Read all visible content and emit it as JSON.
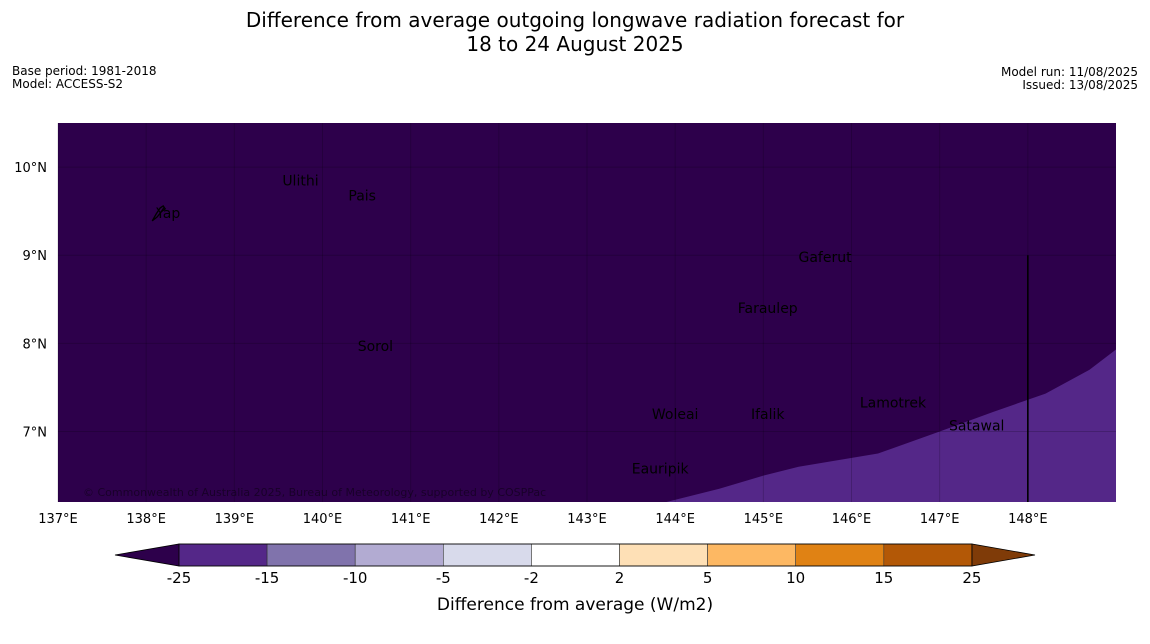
{
  "title": {
    "line1": "Difference from average outgoing longwave radiation forecast for",
    "line2": "18 to 24 August 2025"
  },
  "meta_left": {
    "base_period": "Base period: 1981-2018",
    "model": "Model: ACCESS-S2"
  },
  "meta_right": {
    "model_run": "Model run: 11/08/2025",
    "issued": "Issued: 13/08/2025"
  },
  "map": {
    "lon_min": 137,
    "lon_max": 149,
    "lat_min": 6.2,
    "lat_max": 10.5,
    "lon_ticks": [
      {
        "value": 137,
        "label": "137°E"
      },
      {
        "value": 138,
        "label": "138°E"
      },
      {
        "value": 139,
        "label": "139°E"
      },
      {
        "value": 140,
        "label": "140°E"
      },
      {
        "value": 141,
        "label": "141°E"
      },
      {
        "value": 142,
        "label": "142°E"
      },
      {
        "value": 143,
        "label": "143°E"
      },
      {
        "value": 144,
        "label": "144°E"
      },
      {
        "value": 145,
        "label": "145°E"
      },
      {
        "value": 146,
        "label": "146°E"
      },
      {
        "value": 147,
        "label": "147°E"
      },
      {
        "value": 148,
        "label": "148°E"
      }
    ],
    "lat_ticks": [
      {
        "value": 10,
        "label": "10°N"
      },
      {
        "value": 9,
        "label": "9°N"
      },
      {
        "value": 8,
        "label": "8°N"
      },
      {
        "value": 7,
        "label": "7°N"
      }
    ],
    "background_color": "#2d004b",
    "region_color": "#542788",
    "boundary_line_lon": 148,
    "boundary_line_lat_top": 9,
    "region_boundary": [
      [
        143.9,
        6.2
      ],
      [
        144.5,
        6.35
      ],
      [
        145.0,
        6.5
      ],
      [
        145.4,
        6.6
      ],
      [
        146.3,
        6.75
      ],
      [
        147.0,
        7.0
      ],
      [
        147.6,
        7.22
      ],
      [
        148.2,
        7.43
      ],
      [
        148.7,
        7.7
      ],
      [
        149.0,
        7.93
      ],
      [
        149.0,
        6.2
      ]
    ],
    "places": [
      {
        "name": "Ulithi",
        "lon": 139.75,
        "lat": 9.85
      },
      {
        "name": "Pais",
        "lon": 140.45,
        "lat": 9.68
      },
      {
        "name": "Yap",
        "lon": 138.25,
        "lat": 9.48
      },
      {
        "name": "Gaferut",
        "lon": 145.7,
        "lat": 8.98
      },
      {
        "name": "Faraulep",
        "lon": 145.05,
        "lat": 8.4
      },
      {
        "name": "Sorol",
        "lon": 140.6,
        "lat": 7.97
      },
      {
        "name": "Lamotrek",
        "lon": 146.47,
        "lat": 7.33
      },
      {
        "name": "Woleai",
        "lon": 144.0,
        "lat": 7.2
      },
      {
        "name": "Ifalik",
        "lon": 145.05,
        "lat": 7.2
      },
      {
        "name": "Satawal",
        "lon": 147.42,
        "lat": 7.07
      },
      {
        "name": "Eauripik",
        "lon": 143.83,
        "lat": 6.58
      }
    ],
    "copyright": "© Commonwealth of Australia 2025, Bureau of Meteorology, supported by COSPPac"
  },
  "colorbar": {
    "title": "Difference from average (W/m2)",
    "labels": [
      "-25",
      "-15",
      "-10",
      "-5",
      "-2",
      "2",
      "5",
      "10",
      "15",
      "25"
    ],
    "colors": [
      "#542788",
      "#8073ac",
      "#b2abd2",
      "#d8daeb",
      "#ffffff",
      "#fee0b6",
      "#fdb863",
      "#e08214",
      "#b35806"
    ],
    "under_color": "#2d004b",
    "over_color": "#7f3b08"
  }
}
